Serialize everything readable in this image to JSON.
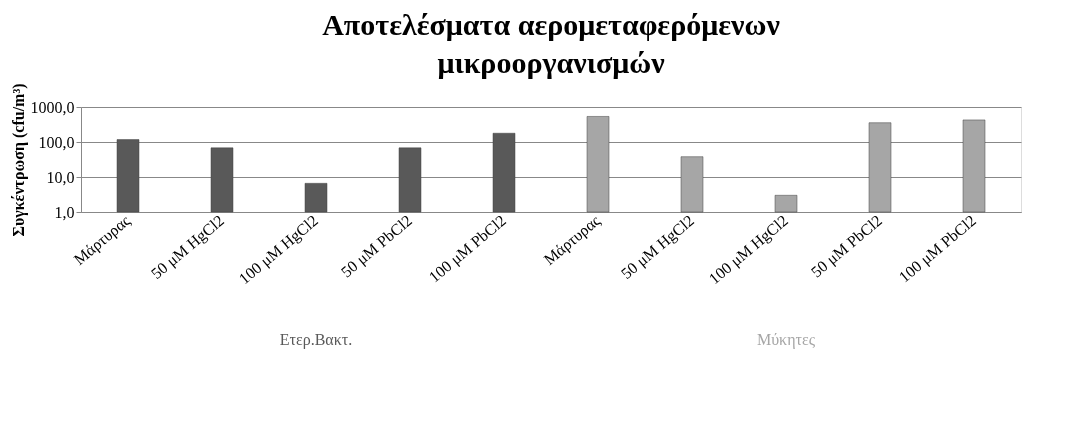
{
  "chart_data": {
    "type": "bar",
    "title": "Αποτελέσματα αερομεταφερόμενων μικροοργανισμών",
    "ylabel": "Συγκέντρωση (cfu/m³)",
    "categories": [
      "Μάρτυρας",
      "50 μM HgCl2",
      "100 μM HgCl2",
      "50 μM PbCl2",
      "100 μM PbCl2",
      "Μάρτυρας",
      "50 μM HgCl2",
      "100 μM HgCl2",
      "50 μM PbCl2",
      "100 μM PbCl2"
    ],
    "series": [
      {
        "name": "Ετερ.Βακτ.",
        "color": "#595959",
        "values": [
          117,
          68,
          6.6,
          68,
          178,
          null,
          null,
          null,
          null,
          null
        ]
      },
      {
        "name": "Μύκητες",
        "color": "#a6a6a6",
        "values": [
          null,
          null,
          null,
          null,
          null,
          537,
          38,
          3.0,
          355,
          427
        ]
      }
    ],
    "log": "y",
    "ylim": [
      1,
      1000
    ],
    "yticks": [
      {
        "value": 1,
        "label": "1,0"
      },
      {
        "value": 10,
        "label": "10,0"
      },
      {
        "value": 100,
        "label": "100,0"
      },
      {
        "value": 1000,
        "label": "1000,0"
      }
    ],
    "grid": "y",
    "legend": false
  }
}
